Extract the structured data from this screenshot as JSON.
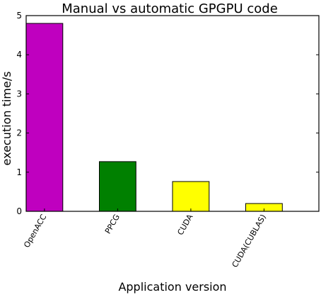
{
  "chart_data": {
    "type": "bar",
    "title": "Manual vs automatic GPGPU code",
    "xlabel": "Application version",
    "ylabel": "execution time/s",
    "categories": [
      "OpenACC",
      "PPCG",
      "CUDA",
      "CUDA(CUBLAS)"
    ],
    "values": [
      4.8,
      1.27,
      0.76,
      0.2
    ],
    "colors": [
      "#bf00bf",
      "#008000",
      "#ffff00",
      "#ffff00"
    ],
    "ylim": [
      0,
      5
    ],
    "yticks": [
      "0",
      "1",
      "2",
      "3",
      "4",
      "5"
    ],
    "grid": false,
    "legend": "none"
  }
}
